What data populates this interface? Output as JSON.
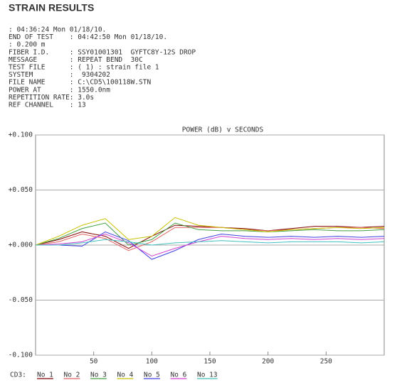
{
  "title": "STRAIN RESULTS",
  "header_lines": [
    ": 04:36:24 Mon 01/18/10.",
    "END OF TEST    : 04:42:50 Mon 01/18/10.",
    ": 0.200 m",
    "FIBER I.D.     : SSY01001301  GYFTC8Y-12S DROP",
    "MESSAGE        : REPEAT BEND  30C",
    "TEST FILE      : ( 1) : strain file 1",
    "SYSTEM         :  9304202",
    "FILE NAME      : C:\\CD5\\100118W.STN",
    "POWER AT       : 1550.0nm",
    "REPETITION RATE: 3.0s",
    "REF CHANNEL    : 13"
  ],
  "chart_data": {
    "type": "line",
    "title": "POWER (dB) v SECONDS",
    "legend_title": "CD3:",
    "x": [
      0,
      20,
      40,
      60,
      80,
      100,
      120,
      140,
      160,
      180,
      200,
      220,
      240,
      260,
      280,
      300
    ],
    "xlim": [
      0,
      300
    ],
    "xticks": [
      50,
      100,
      150,
      200,
      250
    ],
    "ylim": [
      -0.1,
      0.1
    ],
    "yticks": [
      {
        "value": 0.1,
        "label": "+0.100"
      },
      {
        "value": 0.05,
        "label": "+0.050"
      },
      {
        "value": 0,
        "label": "+0.000"
      },
      {
        "value": -0.05,
        "label": "-0.050"
      },
      {
        "value": -0.1,
        "label": "-0.100"
      }
    ],
    "grid": true,
    "series": [
      {
        "name": "No 1",
        "color": "#800000",
        "values": [
          0,
          0.005,
          0.012,
          0.008,
          -0.003,
          0.008,
          0.018,
          0.017,
          0.016,
          0.015,
          0.013,
          0.015,
          0.017,
          0.017,
          0.016,
          0.017
        ]
      },
      {
        "name": "No 2",
        "color": "#e06060",
        "values": [
          0,
          0.003,
          0.01,
          0.006,
          -0.005,
          0.003,
          0.016,
          0.016,
          0.016,
          0.014,
          0.013,
          0.014,
          0.015,
          0.016,
          0.016,
          0.015
        ]
      },
      {
        "name": "No 3",
        "color": "#40a040",
        "values": [
          0,
          0.006,
          0.015,
          0.02,
          0,
          0.005,
          0.02,
          0.014,
          0.013,
          0.013,
          0.012,
          0.013,
          0.014,
          0.013,
          0.013,
          0.014
        ]
      },
      {
        "name": "No 4",
        "color": "#c8c000",
        "values": [
          0,
          0.008,
          0.018,
          0.024,
          0.005,
          0.008,
          0.025,
          0.018,
          0.016,
          0.014,
          0.012,
          0.014,
          0.015,
          0.016,
          0.015,
          0.016
        ]
      },
      {
        "name": "No 5",
        "color": "#4040e0",
        "values": [
          0,
          0,
          -0.001,
          0.012,
          0.004,
          -0.013,
          -0.005,
          0.005,
          0.01,
          0.008,
          0.007,
          0.008,
          0.007,
          0.008,
          0.007,
          0.008
        ]
      },
      {
        "name": "No 6",
        "color": "#d040d0",
        "values": [
          0,
          0.001,
          0.003,
          0.01,
          0.002,
          -0.01,
          -0.003,
          0.003,
          0.008,
          0.006,
          0.005,
          0.006,
          0.005,
          0.006,
          0.005,
          0.006
        ]
      },
      {
        "name": "No 13",
        "color": "#40c0c0",
        "values": [
          0,
          0,
          0.002,
          0.005,
          0.003,
          0,
          0.002,
          0.003,
          0.004,
          0.003,
          0.002,
          0.003,
          0.003,
          0.003,
          0.002,
          0.003
        ]
      }
    ]
  }
}
